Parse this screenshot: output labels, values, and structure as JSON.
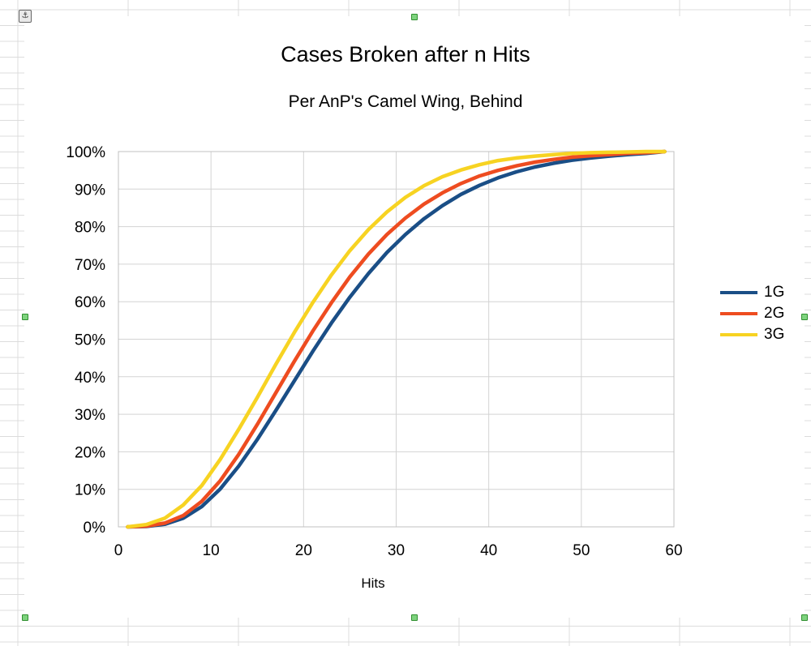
{
  "window": {
    "app": "spreadsheet-chart"
  },
  "colors": {
    "1G": "#1a4e86",
    "2G": "#ee4c20",
    "3G": "#f7d322",
    "grid": "#d3d3d3",
    "sheet_grid": "#dcdcdc"
  },
  "icons": {
    "anchor": "anchor-icon"
  },
  "chart_data": {
    "type": "line",
    "title": "Cases Broken after n Hits",
    "subtitle": "Per AnP's Camel Wing, Behind",
    "xlabel": "Hits",
    "ylabel": "",
    "xlim": [
      0,
      60
    ],
    "ylim": [
      0,
      100
    ],
    "x_ticks": [
      "0",
      "10",
      "20",
      "30",
      "40",
      "50",
      "60"
    ],
    "y_ticks": [
      "0%",
      "10%",
      "20%",
      "30%",
      "40%",
      "50%",
      "60%",
      "70%",
      "80%",
      "90%",
      "100%"
    ],
    "grid": true,
    "legend_position": "right",
    "series": [
      {
        "name": "1G",
        "x": [
          1,
          3,
          5,
          7,
          9,
          11,
          13,
          15,
          17,
          19,
          21,
          23,
          25,
          27,
          29,
          31,
          33,
          35,
          37,
          39,
          41,
          43,
          45,
          47,
          49,
          51,
          53,
          55,
          57,
          59
        ],
        "values": [
          0,
          0.1,
          0.7,
          2.3,
          5.4,
          10.1,
          16.2,
          23.3,
          31.0,
          38.9,
          46.8,
          54.3,
          61.2,
          67.5,
          73.1,
          77.9,
          82.1,
          85.6,
          88.6,
          91.0,
          93.0,
          94.6,
          95.9,
          96.9,
          97.7,
          98.3,
          98.8,
          99.2,
          99.5,
          100
        ]
      },
      {
        "name": "2G",
        "x": [
          1,
          3,
          5,
          7,
          9,
          11,
          13,
          15,
          17,
          19,
          21,
          23,
          25,
          27,
          29,
          31,
          33,
          35,
          37,
          39,
          41,
          43,
          45,
          47,
          49,
          51,
          53,
          55,
          57,
          59
        ],
        "values": [
          0,
          0.2,
          1.0,
          3.0,
          6.8,
          12.3,
          19.3,
          27.3,
          35.7,
          44.1,
          52.2,
          59.7,
          66.6,
          72.7,
          77.9,
          82.3,
          86.0,
          89.0,
          91.5,
          93.5,
          95.0,
          96.2,
          97.2,
          97.9,
          98.5,
          98.9,
          99.2,
          99.5,
          99.7,
          100
        ]
      },
      {
        "name": "3G",
        "x": [
          1,
          3,
          5,
          7,
          9,
          11,
          13,
          15,
          17,
          19,
          21,
          23,
          25,
          27,
          29,
          31,
          33,
          35,
          37,
          39,
          41,
          43,
          45,
          47,
          49,
          51,
          53,
          55,
          57,
          59
        ],
        "values": [
          0,
          0.6,
          2.3,
          5.8,
          11.0,
          18.0,
          26.0,
          34.5,
          43.3,
          51.8,
          59.8,
          67.1,
          73.6,
          79.2,
          83.9,
          87.8,
          90.9,
          93.3,
          95.1,
          96.5,
          97.6,
          98.3,
          98.8,
          99.2,
          99.5,
          99.7,
          99.8,
          99.9,
          100,
          100
        ]
      }
    ]
  }
}
